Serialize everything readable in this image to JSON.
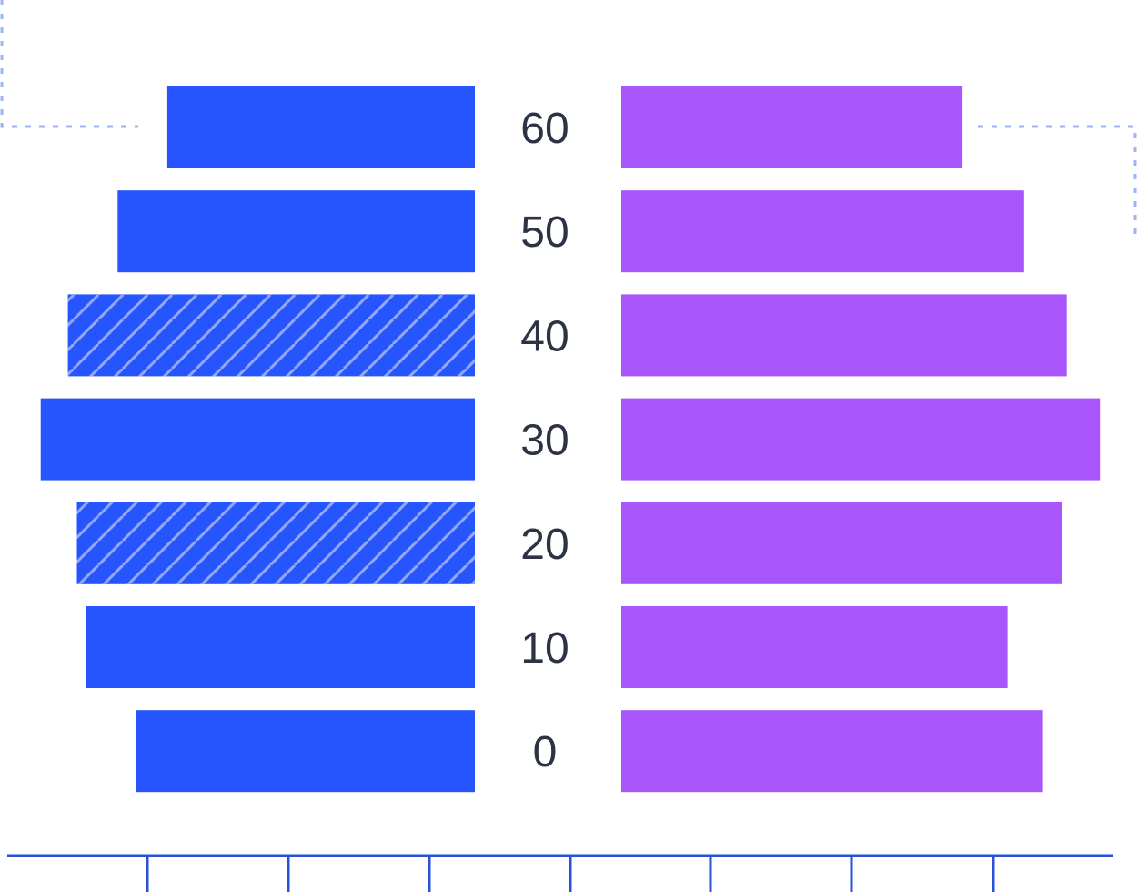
{
  "chart_data": {
    "type": "bar",
    "orientation": "horizontal",
    "layout": "population-pyramid",
    "categories": [
      "60",
      "50",
      "40",
      "30",
      "20",
      "10",
      "0"
    ],
    "series": [
      {
        "side": "left",
        "color": "#2655fd",
        "values": [
          6.8,
          7.9,
          9.0,
          9.6,
          8.8,
          8.6,
          7.5
        ],
        "hatched": [
          false,
          false,
          true,
          false,
          true,
          false,
          false
        ]
      },
      {
        "side": "right",
        "color": "#a855fb",
        "values": [
          7.2,
          8.5,
          9.4,
          10.1,
          9.3,
          8.15,
          8.9
        ]
      }
    ],
    "xlim": [
      0,
      10.5
    ],
    "grid": false,
    "legend": "none",
    "colors": {
      "axis": "#2a52d8",
      "guide": "#9db4f3",
      "hatch": "#93a8f5",
      "label": "#2c3444"
    }
  }
}
